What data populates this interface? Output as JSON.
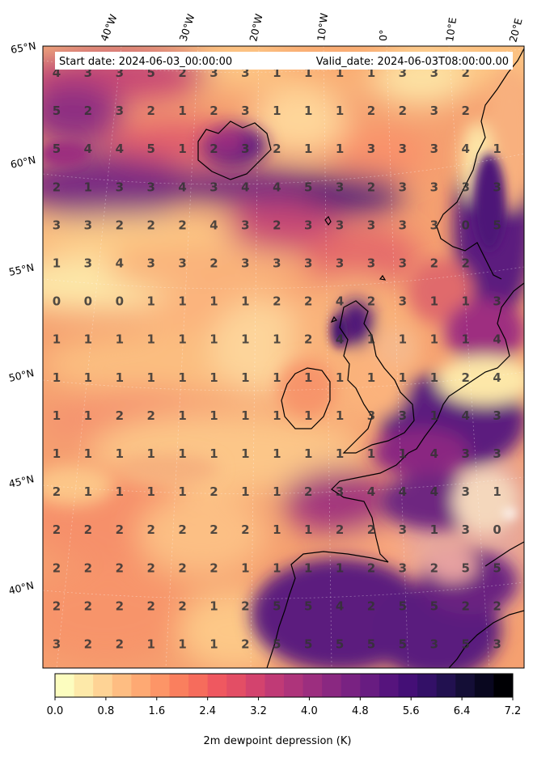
{
  "header": {
    "start_date": "Start date: 2024-06-03_00:00:00",
    "valid_date": "Valid_date: 2024-06-03T08:00:00.00"
  },
  "longitude_labels": [
    "40°W",
    "30°W",
    "20°W",
    "10°W",
    "0°",
    "10°E",
    "20°E"
  ],
  "latitude_labels": [
    "65°N",
    "60°N",
    "55°N",
    "50°N",
    "45°N",
    "40°N"
  ],
  "grid_values": [
    [
      4,
      3,
      3,
      5,
      2,
      3,
      3,
      1,
      1,
      1,
      1,
      3,
      3,
      2
    ],
    [
      5,
      2,
      3,
      2,
      1,
      2,
      3,
      1,
      1,
      1,
      2,
      2,
      3,
      2
    ],
    [
      5,
      4,
      4,
      5,
      1,
      2,
      3,
      2,
      1,
      1,
      3,
      3,
      3,
      4,
      1
    ],
    [
      2,
      1,
      3,
      3,
      4,
      3,
      4,
      4,
      5,
      3,
      2,
      3,
      3,
      3,
      3
    ],
    [
      3,
      3,
      2,
      2,
      2,
      4,
      3,
      2,
      3,
      3,
      3,
      3,
      3,
      0,
      5
    ],
    [
      1,
      3,
      4,
      3,
      3,
      2,
      3,
      3,
      3,
      3,
      3,
      3,
      2,
      2
    ],
    [
      0,
      0,
      0,
      1,
      1,
      1,
      1,
      2,
      2,
      4,
      2,
      3,
      1,
      1,
      3
    ],
    [
      1,
      1,
      1,
      1,
      1,
      1,
      1,
      1,
      2,
      4,
      1,
      1,
      1,
      1,
      4
    ],
    [
      1,
      1,
      1,
      1,
      1,
      1,
      1,
      1,
      1,
      1,
      1,
      1,
      1,
      2,
      4
    ],
    [
      1,
      1,
      2,
      2,
      1,
      1,
      1,
      1,
      1,
      1,
      3,
      3,
      1,
      4,
      3
    ],
    [
      1,
      1,
      1,
      1,
      1,
      1,
      1,
      1,
      1,
      1,
      1,
      1,
      4,
      3,
      3
    ],
    [
      2,
      1,
      1,
      1,
      1,
      2,
      1,
      1,
      2,
      3,
      4,
      4,
      4,
      3,
      1
    ],
    [
      2,
      2,
      2,
      2,
      2,
      2,
      2,
      1,
      1,
      2,
      2,
      3,
      1,
      3,
      0
    ],
    [
      2,
      2,
      2,
      2,
      2,
      2,
      1,
      1,
      1,
      1,
      2,
      3,
      2,
      5,
      5
    ],
    [
      2,
      2,
      2,
      2,
      2,
      1,
      2,
      5,
      5,
      4,
      2,
      5,
      5,
      2,
      2
    ],
    [
      3,
      2,
      2,
      1,
      1,
      1,
      2,
      5,
      5,
      5,
      5,
      5,
      3,
      5,
      3
    ]
  ],
  "colorbar": {
    "min": 0.0,
    "max": 7.2,
    "tick_labels": [
      "0.0",
      "0.8",
      "1.6",
      "2.4",
      "3.2",
      "4.0",
      "4.8",
      "5.6",
      "6.4",
      "7.2"
    ],
    "label": "2m dewpoint depression (K)",
    "colors": [
      "#fcfdbf",
      "#fde9a9",
      "#fed395",
      "#febd82",
      "#fea973",
      "#fd9567",
      "#fa7f5e",
      "#f66c5c",
      "#ef5860",
      "#e34e65",
      "#d3436e",
      "#c03a76",
      "#ae347b",
      "#9c2e7f",
      "#8a2881",
      "#792282",
      "#681c81",
      "#56147d",
      "#440f76",
      "#331067",
      "#221150",
      "#140e36",
      "#09071f",
      "#000004"
    ],
    "field_colors": {
      "very_dry_light": "#fde7a8",
      "light": "#fdc684",
      "orange": "#f9916a",
      "pink": "#e05c6c",
      "magenta": "#b8407a",
      "purple": "#7a2a82",
      "deep_purple": "#5b1a7e"
    }
  }
}
